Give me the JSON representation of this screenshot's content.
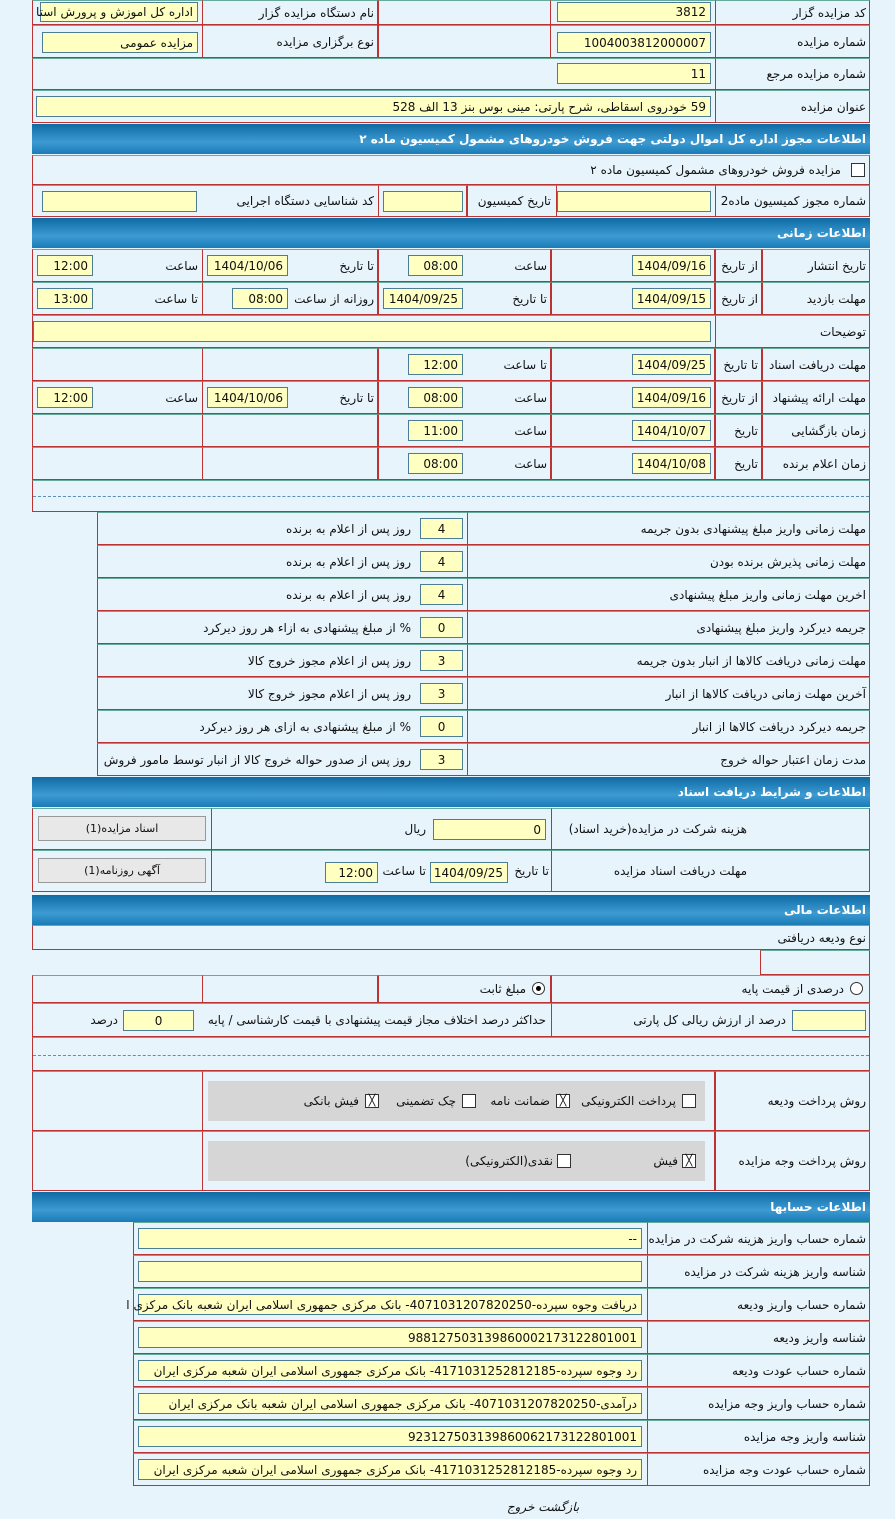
{
  "general": {
    "auctioneer_code_label": "کد مزایده گزار",
    "auctioneer_code": "3812",
    "org_name_label": "نام دستگاه مزایده گزار",
    "org_name": "اداره کل اموزش و پرورش استا",
    "auction_number_label": "شماره مزایده",
    "auction_number": "1004003812000007",
    "holding_type_label": "نوع برگزاری مزایده",
    "holding_type": "مزایده عمومی",
    "ref_number_label": "شماره مزایده مرجع",
    "ref_number": "11",
    "title_label": "عنوان مزایده",
    "title": "59 خودروی اسقاطی، شرح پارتی: مینی بوس بنز 13 الف 528"
  },
  "permit": {
    "header": "اطلاعات مجوز اداره کل اموال دولتی جهت فروش خودروهای مشمول کمیسیون ماده ۲",
    "checkbox_label": "مزایده فروش خودروهای مشمول کمیسیون ماده ۲",
    "checked": false,
    "permit_number_label": "شماره مجوز کمیسیون ماده2",
    "permit_number": "",
    "commission_date_label": "تاریخ کمیسیون",
    "commission_date": "",
    "exec_id_label": "کد شناسایی دستگاه اجرایی",
    "exec_id": ""
  },
  "timing": {
    "header": "اطلاعات زمانی",
    "from_date": "از تاریخ",
    "to_date": "تا تاریخ",
    "date": "تاریخ",
    "time": "ساعت",
    "to_time": "تا ساعت",
    "daily_from_time": "روزانه از ساعت",
    "publish_label": "تاریخ انتشار",
    "publish_from": "1404/09/16",
    "publish_from_time": "08:00",
    "publish_to": "1404/10/06",
    "publish_to_time": "12:00",
    "visit_label": "مهلت بازدید",
    "visit_from": "1404/09/15",
    "visit_to": "1404/09/25",
    "visit_from_time": "08:00",
    "visit_to_time": "13:00",
    "notes_label": "توضیحات",
    "notes": "",
    "docs_label": "مهلت دریافت اسناد",
    "docs_to": "1404/09/25",
    "docs_to_time": "12:00",
    "offer_label": "مهلت ارائه پیشنهاد",
    "offer_from": "1404/09/16",
    "offer_from_time": "08:00",
    "offer_to": "1404/10/06",
    "offer_to_time": "12:00",
    "opening_label": "زمان بازگشایی",
    "opening_date": "1404/10/07",
    "opening_time": "11:00",
    "winner_label": "زمان اعلام برنده",
    "winner_date": "1404/10/08",
    "winner_time": "08:00"
  },
  "rules": [
    {
      "label": "مهلت زمانی واریز مبلغ پیشنهادی بدون جریمه",
      "value": "4",
      "unit": "روز پس از اعلام به برنده"
    },
    {
      "label": "مهلت زمانی پذیرش برنده بودن",
      "value": "4",
      "unit": "روز پس از اعلام به برنده"
    },
    {
      "label": "اخرین مهلت زمانی واریز مبلغ پیشنهادی",
      "value": "4",
      "unit": "روز پس از اعلام به برنده"
    },
    {
      "label": "جریمه دیرکرد واریز مبلغ پیشنهادی",
      "value": "0",
      "unit": "% از مبلغ پیشنهادی به ازاء هر روز دیرکرد"
    },
    {
      "label": "مهلت زمانی دریافت کالاها از انبار بدون جریمه",
      "value": "3",
      "unit": "روز پس از اعلام مجوز خروج کالا"
    },
    {
      "label": "آخرین مهلت زمانی دریافت کالاها از انبار",
      "value": "3",
      "unit": "روز پس از اعلام مجوز خروج کالا"
    },
    {
      "label": "جریمه دیرکرد دریافت کالاها از انبار",
      "value": "0",
      "unit": "% از مبلغ پیشنهادی به ازای هر روز دیرکرد"
    },
    {
      "label": "مدت زمان اعتبار حواله خروج",
      "value": "3",
      "unit": "روز پس از صدور حواله خروج کالا از انبار توسط مامور فروش"
    }
  ],
  "docs": {
    "header": "اطلاعات و شرایط دریافت اسناد",
    "fee_label": "هزینه شرکت در مزایده(خرید اسناد)",
    "fee": "0",
    "currency": "ریال",
    "docs_button": "اسناد مزایده(1)",
    "deadline_label": "مهلت دریافت اسناد مزایده",
    "to_date": "تا تاریخ",
    "date": "1404/09/25",
    "to_time": "تا ساعت",
    "time": "12:00",
    "ad_button": "آگهی روزنامه(1)"
  },
  "finance": {
    "header": "اطلاعات مالی",
    "deposit_type_label": "نوع ودیعه دریافتی",
    "radio_percent": "درصدی از قیمت پایه",
    "radio_fixed": "مبلغ ثابت",
    "selected": "fixed",
    "percent_value": "",
    "percent_label": "درصد از ارزش ریالی کل پارتی",
    "max_diff_label": "حداکثر درصد اختلاف مجاز قیمت پیشنهادی با قیمت کارشناسی / پایه",
    "max_diff": "0",
    "percent_unit": "درصد",
    "deposit_method_label": "روش پرداخت ودیعه",
    "deposit_methods": [
      {
        "label": "پرداخت الکترونیکی",
        "checked": false
      },
      {
        "label": "ضمانت نامه",
        "checked": true
      },
      {
        "label": "چک تضمینی",
        "checked": false
      },
      {
        "label": "فیش بانکی",
        "checked": true
      }
    ],
    "payment_method_label": "روش پرداخت وجه مزایده",
    "payment_methods": [
      {
        "label": "فیش",
        "checked": true
      },
      {
        "label": "نقدی(الکترونیکی)",
        "checked": false
      }
    ]
  },
  "accounts": {
    "header": "اطلاعات حسابها",
    "rows": [
      {
        "label": "شماره حساب واریز هزینه شرکت در مزایده",
        "value": "--"
      },
      {
        "label": "شناسه واریز هزینه شرکت در مزایده",
        "value": ""
      },
      {
        "label": "شماره حساب واریز ودیعه",
        "value": "دریافت وجوه سپرده-4071031207820250- بانک مرکزی جمهوری اسلامی ایران شعبه بانک مرکزی ا"
      },
      {
        "label": "شناسه واریز ودیعه",
        "value": "988127503139860002173122801001"
      },
      {
        "label": "شماره حساب عودت ودیعه",
        "value": "رد وجوه سپرده-4171031252812185- بانک مرکزی جمهوری اسلامی ایران شعبه مرکزی ایران"
      },
      {
        "label": "شماره حساب واریز وجه مزایده",
        "value": "درآمدی-4071031207820250- بانک مرکزی جمهوری اسلامی ایران شعبه بانک مرکزی ایران"
      },
      {
        "label": "شناسه واریز وجه مزایده",
        "value": "923127503139860062173122801001"
      },
      {
        "label": "شماره حساب عودت وجه مزایده",
        "value": "رد وجوه سپرده-4171031252812185- بانک مرکزی جمهوری اسلامی ایران شعبه مرکزی ایران"
      }
    ]
  },
  "footer": {
    "links": "بازگشت خروج"
  },
  "colors": {
    "header": "#1a7bb6",
    "input_bg": "#ffffc2",
    "page_bg": "#e8f4fc"
  }
}
